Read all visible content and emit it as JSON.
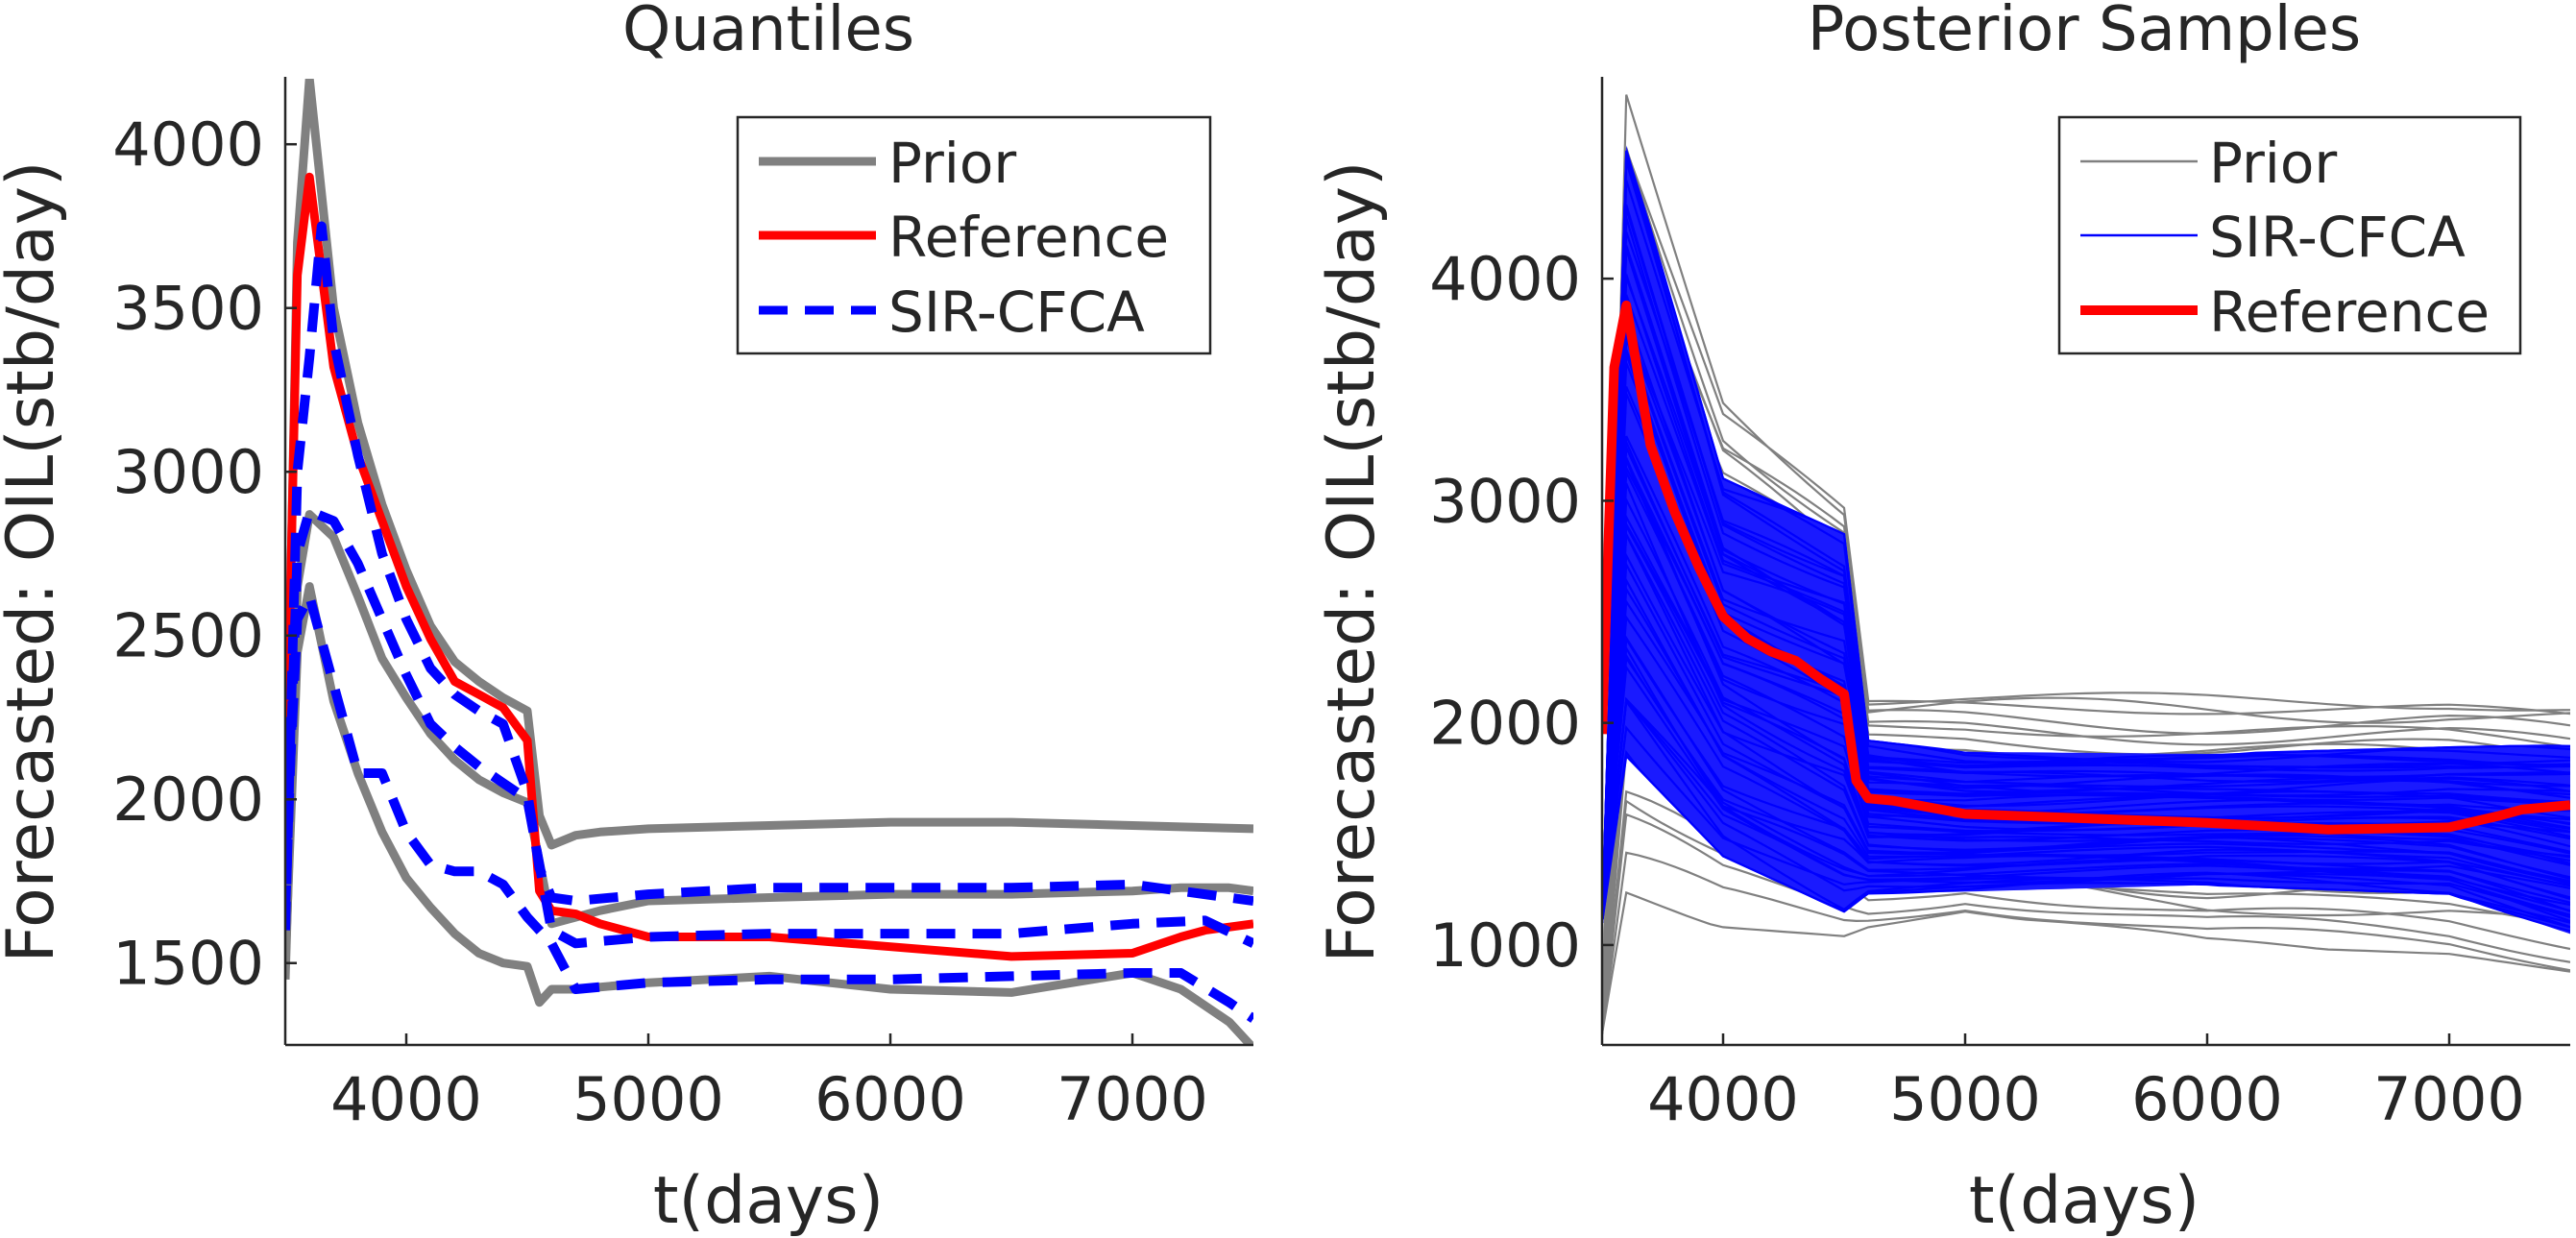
{
  "chart_data": [
    {
      "type": "line",
      "title": "Quantiles",
      "xlabel": "t(days)",
      "ylabel": "Forecasted: OIL(stb/day)",
      "xlim": [
        3500,
        7500
      ],
      "ylim": [
        1250,
        4200
      ],
      "xticks": [
        4000,
        5000,
        6000,
        7000
      ],
      "yticks": [
        1500,
        2000,
        2500,
        3000,
        3500,
        4000
      ],
      "grid": false,
      "legend_position": "top-right",
      "legend": [
        {
          "label": "Prior",
          "color": "#808080",
          "style": "solid"
        },
        {
          "label": "Reference",
          "color": "#ff0000",
          "style": "solid"
        },
        {
          "label": "SIR-CFCA",
          "color": "#0000ff",
          "style": "dashed"
        }
      ],
      "series": [
        {
          "name": "Prior",
          "color": "#808080",
          "style": "solid",
          "x": [
            3500,
            3550,
            3600,
            3700,
            3800,
            3900,
            4000,
            4100,
            4200,
            4300,
            4400,
            4500,
            4550,
            4600,
            4700,
            4800,
            5000,
            5500,
            6000,
            6500,
            7000,
            7500
          ],
          "y": [
            1800,
            3700,
            4200,
            3500,
            3150,
            2900,
            2700,
            2530,
            2420,
            2360,
            2310,
            2270,
            1950,
            1860,
            1890,
            1900,
            1910,
            1920,
            1930,
            1930,
            1920,
            1910
          ]
        },
        {
          "name": "Prior",
          "color": "#808080",
          "style": "solid",
          "x": [
            3500,
            3550,
            3600,
            3700,
            3800,
            3900,
            4000,
            4100,
            4200,
            4300,
            4400,
            4500,
            4550,
            4600,
            4700,
            4800,
            5000,
            5500,
            6000,
            6500,
            7000,
            7200,
            7400,
            7500
          ],
          "y": [
            1450,
            2650,
            2870,
            2800,
            2620,
            2430,
            2310,
            2200,
            2120,
            2060,
            2020,
            1990,
            1810,
            1620,
            1640,
            1660,
            1690,
            1700,
            1710,
            1710,
            1720,
            1730,
            1730,
            1720
          ]
        },
        {
          "name": "Prior",
          "color": "#808080",
          "style": "solid",
          "x": [
            3500,
            3550,
            3600,
            3700,
            3800,
            3900,
            4000,
            4100,
            4200,
            4300,
            4400,
            4500,
            4550,
            4600,
            4700,
            5000,
            5500,
            6000,
            6500,
            7000,
            7200,
            7400,
            7500
          ],
          "y": [
            1500,
            2450,
            2650,
            2300,
            2080,
            1900,
            1760,
            1670,
            1590,
            1530,
            1500,
            1490,
            1380,
            1420,
            1420,
            1440,
            1460,
            1420,
            1410,
            1470,
            1420,
            1320,
            1240
          ]
        },
        {
          "name": "Reference",
          "color": "#ff0000",
          "style": "solid",
          "x": [
            3500,
            3550,
            3600,
            3700,
            3800,
            3900,
            4000,
            4100,
            4200,
            4300,
            4400,
            4500,
            4550,
            4600,
            4700,
            4800,
            5000,
            5500,
            6000,
            6500,
            7000,
            7200,
            7300,
            7500
          ],
          "y": [
            1900,
            3600,
            3900,
            3320,
            3050,
            2850,
            2650,
            2490,
            2360,
            2320,
            2280,
            2180,
            1720,
            1660,
            1650,
            1620,
            1580,
            1580,
            1550,
            1520,
            1530,
            1580,
            1600,
            1620
          ]
        },
        {
          "name": "SIR-CFCA",
          "color": "#0000ff",
          "style": "dashed",
          "x": [
            3500,
            3550,
            3600,
            3650,
            3700,
            3800,
            3900,
            4000,
            4100,
            4200,
            4300,
            4400,
            4500,
            4550,
            4600,
            4700,
            5000,
            5500,
            6000,
            6500,
            7000,
            7500
          ],
          "y": [
            1600,
            3000,
            3350,
            3750,
            3400,
            3050,
            2750,
            2550,
            2400,
            2320,
            2270,
            2230,
            2020,
            1790,
            1700,
            1690,
            1710,
            1730,
            1730,
            1730,
            1740,
            1690
          ]
        },
        {
          "name": "SIR-CFCA",
          "color": "#0000ff",
          "style": "dashed",
          "x": [
            3500,
            3550,
            3600,
            3700,
            3800,
            3900,
            4000,
            4100,
            4200,
            4300,
            4400,
            4500,
            4600,
            4700,
            5000,
            5500,
            6000,
            6500,
            7000,
            7300,
            7500
          ],
          "y": [
            1650,
            2750,
            2880,
            2850,
            2720,
            2550,
            2380,
            2230,
            2160,
            2100,
            2050,
            2000,
            1600,
            1560,
            1580,
            1590,
            1590,
            1590,
            1620,
            1630,
            1560
          ]
        },
        {
          "name": "SIR-CFCA",
          "color": "#0000ff",
          "style": "dashed",
          "x": [
            3500,
            3550,
            3600,
            3700,
            3800,
            3900,
            4000,
            4100,
            4200,
            4300,
            4400,
            4500,
            4600,
            4700,
            5000,
            5500,
            6000,
            6500,
            7000,
            7200,
            7400,
            7500
          ],
          "y": [
            1800,
            2550,
            2620,
            2350,
            2080,
            2080,
            1900,
            1800,
            1780,
            1780,
            1740,
            1640,
            1560,
            1420,
            1440,
            1450,
            1450,
            1460,
            1470,
            1470,
            1380,
            1330
          ]
        }
      ]
    },
    {
      "type": "line",
      "title": "Posterior Samples",
      "xlabel": "t(days)",
      "ylabel": "Forecasted: OIL(stb/day)",
      "xlim": [
        3500,
        7500
      ],
      "ylim": [
        550,
        4900
      ],
      "xticks": [
        4000,
        5000,
        6000,
        7000
      ],
      "yticks": [
        1000,
        2000,
        3000,
        4000
      ],
      "grid": false,
      "legend_position": "top-right",
      "legend": [
        {
          "label": "Prior",
          "color": "#808080",
          "style": "thin"
        },
        {
          "label": "SIR-CFCA",
          "color": "#0000ff",
          "style": "thin"
        },
        {
          "label": "Reference",
          "color": "#ff0000",
          "style": "thick"
        }
      ],
      "reference": {
        "name": "Reference",
        "color": "#ff0000",
        "x": [
          3500,
          3550,
          3600,
          3700,
          3800,
          3900,
          4000,
          4100,
          4200,
          4300,
          4400,
          4500,
          4550,
          4600,
          4700,
          4800,
          5000,
          5500,
          6000,
          6500,
          7000,
          7200,
          7300,
          7500
        ],
        "y": [
          1950,
          3600,
          3880,
          3250,
          2950,
          2700,
          2480,
          2380,
          2320,
          2280,
          2200,
          2130,
          1740,
          1660,
          1650,
          1630,
          1590,
          1570,
          1550,
          1520,
          1530,
          1580,
          1610,
          1630
        ]
      },
      "prior_envelope": {
        "x": [
          3500,
          3600,
          4000,
          4500,
          4600,
          5000,
          6000,
          7000,
          7500
        ],
        "upper": [
          600,
          4900,
          3550,
          3050,
          2140,
          2140,
          2140,
          2130,
          2100
        ],
        "lower": [
          600,
          1150,
          1080,
          1040,
          1080,
          1150,
          1000,
          960,
          880
        ]
      },
      "posterior_envelope": {
        "x": [
          3500,
          3600,
          4000,
          4500,
          4600,
          5000,
          6000,
          7000,
          7500
        ],
        "upper": [
          1100,
          4600,
          3100,
          2850,
          1920,
          1870,
          1860,
          1890,
          1900
        ],
        "lower": [
          1100,
          1850,
          1400,
          1150,
          1230,
          1240,
          1270,
          1230,
          1050
        ]
      }
    }
  ]
}
